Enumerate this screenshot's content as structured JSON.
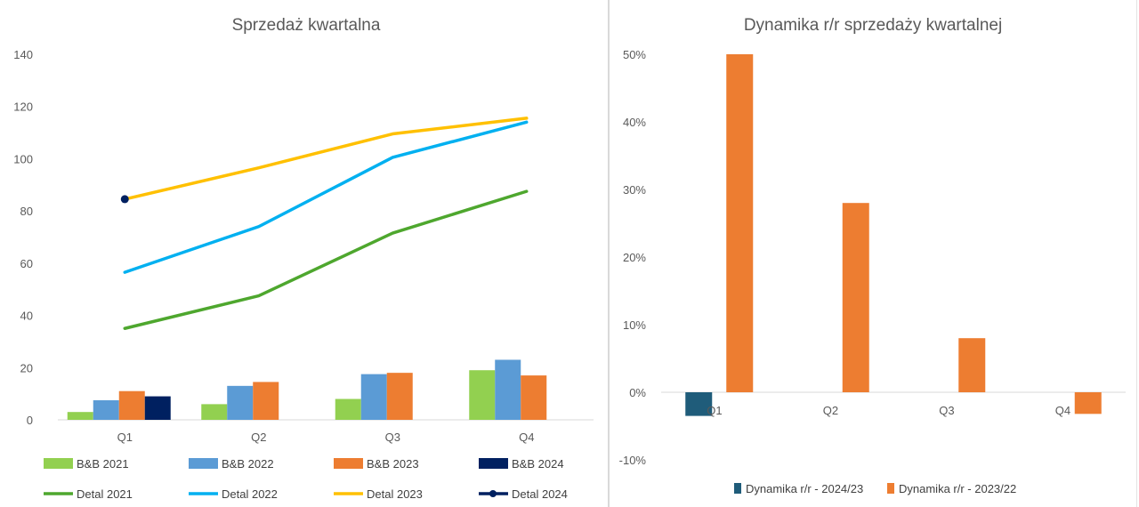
{
  "chart_data": [
    {
      "type": "bar",
      "title": "Sprzedaż kwartalna",
      "categories": [
        "Q1",
        "Q2",
        "Q3",
        "Q4"
      ],
      "ylim": [
        0,
        140
      ],
      "yticks": [
        0,
        20,
        40,
        60,
        80,
        100,
        120,
        140
      ],
      "grid": false,
      "legend_position": "bottom",
      "series": [
        {
          "name": "B&B 2021",
          "kind": "bar",
          "color": "#92d050",
          "values": [
            3,
            6,
            8,
            19
          ]
        },
        {
          "name": "B&B 2022",
          "kind": "bar",
          "color": "#5b9bd5",
          "values": [
            7.5,
            13,
            17.5,
            23
          ]
        },
        {
          "name": "B&B 2023",
          "kind": "bar",
          "color": "#ed7d31",
          "values": [
            11,
            14.5,
            18,
            17
          ]
        },
        {
          "name": "B&B 2024",
          "kind": "bar",
          "color": "#002060",
          "values": [
            9,
            null,
            null,
            null
          ]
        },
        {
          "name": "Detal 2021",
          "kind": "line",
          "color": "#4ea72e",
          "values": [
            35,
            47.5,
            71.5,
            87.5
          ]
        },
        {
          "name": "Detal 2022",
          "kind": "line",
          "color": "#00b0f0",
          "values": [
            56.5,
            74,
            100.5,
            114
          ]
        },
        {
          "name": "Detal 2023",
          "kind": "line",
          "color": "#ffc000",
          "values": [
            84.5,
            96.5,
            109.5,
            115.5
          ]
        },
        {
          "name": "Detal 2024",
          "kind": "line",
          "color": "#002060",
          "marker": true,
          "values": [
            84.5,
            null,
            null,
            null
          ]
        }
      ]
    },
    {
      "type": "bar",
      "title": "Dynamika r/r sprzedaży kwartalnej",
      "categories": [
        "Q1",
        "Q2",
        "Q3",
        "Q4"
      ],
      "ylim": [
        -0.1,
        0.5
      ],
      "yticks": [
        -0.1,
        0,
        0.1,
        0.2,
        0.3,
        0.4,
        0.5
      ],
      "ytick_labels": [
        "-10%",
        "0%",
        "10%",
        "20%",
        "30%",
        "40%",
        "50%"
      ],
      "grid": false,
      "legend_position": "bottom",
      "series": [
        {
          "name": "Dynamika r/r - 2024/23",
          "color": "#1f5c7a",
          "values": [
            -0.035,
            null,
            null,
            null
          ]
        },
        {
          "name": "Dynamika r/r - 2023/22",
          "color": "#ed7d31",
          "values": [
            0.5,
            0.28,
            0.08,
            -0.032
          ]
        }
      ]
    }
  ]
}
